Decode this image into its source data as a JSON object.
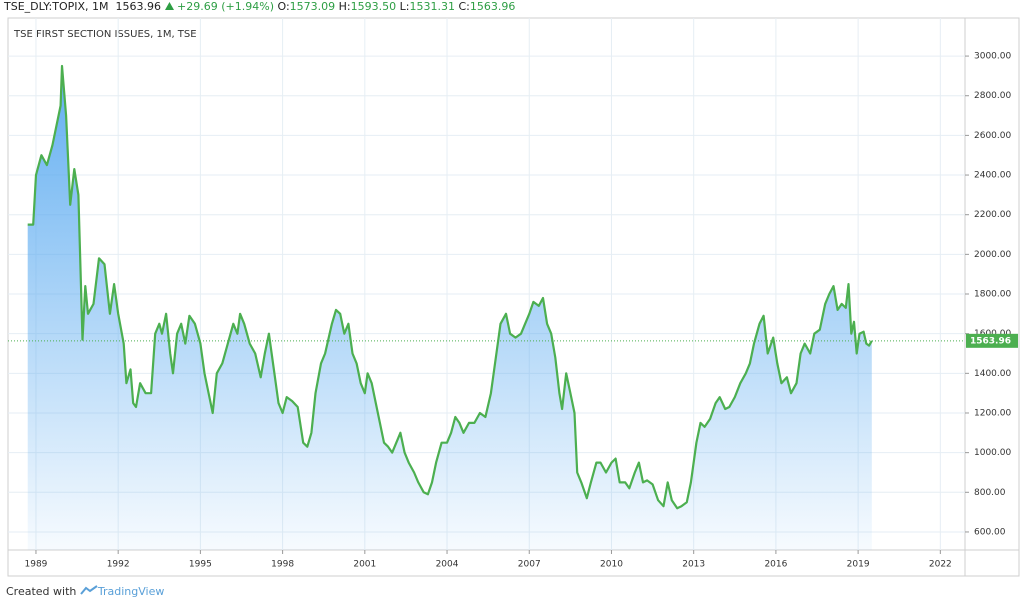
{
  "header": {
    "symbol": "TSE_DLY:TOPIX, 1M",
    "price": "1563.96",
    "change": "+29.69 (+1.94%)",
    "ohlc": [
      {
        "label": "O:",
        "value": "1573.09"
      },
      {
        "label": "H:",
        "value": "1593.50"
      },
      {
        "label": "L:",
        "value": "1531.31"
      },
      {
        "label": "C:",
        "value": "1563.96"
      }
    ]
  },
  "footer": {
    "prefix": "Created with",
    "brand": "TradingView"
  },
  "chart_data": {
    "type": "area",
    "title": "TSE FIRST SECTION ISSUES, 1M, TSE",
    "x": [
      1988.7,
      1988.9,
      1989.0,
      1989.2,
      1989.4,
      1989.6,
      1989.75,
      1989.9,
      1989.95,
      1990.1,
      1990.25,
      1990.4,
      1990.55,
      1990.7,
      1990.8,
      1990.9,
      1991.1,
      1991.3,
      1991.5,
      1991.7,
      1991.85,
      1992.0,
      1992.2,
      1992.3,
      1992.45,
      1992.55,
      1992.65,
      1992.8,
      1993.0,
      1993.2,
      1993.35,
      1993.5,
      1993.6,
      1993.75,
      1993.9,
      1994.0,
      1994.15,
      1994.3,
      1994.45,
      1994.6,
      1994.8,
      1995.0,
      1995.15,
      1995.3,
      1995.45,
      1995.6,
      1995.8,
      1996.0,
      1996.2,
      1996.35,
      1996.45,
      1996.6,
      1996.8,
      1997.0,
      1997.2,
      1997.35,
      1997.5,
      1997.7,
      1997.85,
      1998.0,
      1998.15,
      1998.35,
      1998.55,
      1998.75,
      1998.9,
      1999.05,
      1999.2,
      1999.4,
      1999.55,
      1999.8,
      1999.95,
      2000.1,
      2000.25,
      2000.4,
      2000.55,
      2000.7,
      2000.85,
      2001.0,
      2001.1,
      2001.25,
      2001.4,
      2001.55,
      2001.7,
      2001.85,
      2002.0,
      2002.15,
      2002.3,
      2002.45,
      2002.6,
      2002.8,
      2002.95,
      2003.15,
      2003.3,
      2003.45,
      2003.6,
      2003.8,
      2004.0,
      2004.15,
      2004.3,
      2004.45,
      2004.6,
      2004.8,
      2005.0,
      2005.2,
      2005.4,
      2005.6,
      2005.8,
      2005.95,
      2006.15,
      2006.3,
      2006.5,
      2006.7,
      2006.85,
      2007.0,
      2007.15,
      2007.35,
      2007.5,
      2007.65,
      2007.8,
      2007.95,
      2008.1,
      2008.2,
      2008.35,
      2008.5,
      2008.65,
      2008.75,
      2008.9,
      2009.1,
      2009.25,
      2009.45,
      2009.6,
      2009.8,
      2010.0,
      2010.15,
      2010.3,
      2010.5,
      2010.65,
      2010.85,
      2011.0,
      2011.15,
      2011.3,
      2011.5,
      2011.7,
      2011.9,
      2012.05,
      2012.2,
      2012.4,
      2012.55,
      2012.75,
      2012.9,
      2013.1,
      2013.25,
      2013.4,
      2013.6,
      2013.8,
      2013.95,
      2014.15,
      2014.3,
      2014.5,
      2014.7,
      2014.9,
      2015.05,
      2015.2,
      2015.4,
      2015.55,
      2015.7,
      2015.9,
      2016.05,
      2016.2,
      2016.4,
      2016.55,
      2016.75,
      2016.9,
      2017.05,
      2017.25,
      2017.4,
      2017.6,
      2017.8,
      2017.95,
      2018.1,
      2018.25,
      2018.4,
      2018.55,
      2018.65,
      2018.75,
      2018.85,
      2018.95,
      2019.05,
      2019.2,
      2019.3,
      2019.4,
      2019.5
    ],
    "values": [
      2150,
      2150,
      2400,
      2500,
      2450,
      2550,
      2650,
      2750,
      2950,
      2700,
      2250,
      2430,
      2300,
      1570,
      1840,
      1700,
      1750,
      1980,
      1950,
      1700,
      1850,
      1700,
      1550,
      1350,
      1420,
      1250,
      1230,
      1350,
      1300,
      1300,
      1600,
      1650,
      1600,
      1700,
      1500,
      1400,
      1600,
      1650,
      1550,
      1690,
      1650,
      1550,
      1400,
      1300,
      1200,
      1400,
      1450,
      1550,
      1650,
      1600,
      1700,
      1650,
      1550,
      1500,
      1380,
      1500,
      1600,
      1400,
      1250,
      1200,
      1280,
      1260,
      1230,
      1050,
      1030,
      1100,
      1300,
      1450,
      1500,
      1650,
      1720,
      1700,
      1600,
      1650,
      1500,
      1450,
      1350,
      1300,
      1400,
      1350,
      1250,
      1150,
      1050,
      1030,
      1000,
      1050,
      1100,
      1000,
      950,
      900,
      850,
      800,
      790,
      850,
      950,
      1050,
      1050,
      1100,
      1180,
      1150,
      1100,
      1150,
      1150,
      1200,
      1180,
      1300,
      1500,
      1650,
      1700,
      1600,
      1580,
      1600,
      1650,
      1700,
      1760,
      1740,
      1780,
      1650,
      1600,
      1480,
      1300,
      1220,
      1400,
      1300,
      1200,
      900,
      850,
      770,
      850,
      950,
      950,
      900,
      950,
      970,
      850,
      850,
      820,
      900,
      950,
      850,
      860,
      840,
      760,
      730,
      850,
      760,
      720,
      730,
      750,
      850,
      1050,
      1150,
      1130,
      1170,
      1250,
      1280,
      1220,
      1230,
      1280,
      1350,
      1400,
      1450,
      1550,
      1650,
      1690,
      1500,
      1580,
      1450,
      1350,
      1380,
      1300,
      1350,
      1500,
      1550,
      1500,
      1600,
      1620,
      1750,
      1800,
      1840,
      1720,
      1750,
      1730,
      1850,
      1600,
      1660,
      1500,
      1600,
      1610,
      1550,
      1540,
      1563.96
    ],
    "last_value": 1563.96,
    "color": "#4caf50",
    "fill_color": "#5aaaf0",
    "xlim": [
      1987.98,
      2022.9
    ],
    "xticks": [
      1989,
      1992,
      1995,
      1998,
      2001,
      2004,
      2007,
      2010,
      2013,
      2016,
      2019,
      2022
    ],
    "ylim": [
      509,
      3192
    ],
    "yticks": [
      {
        "value": 600,
        "label": "600.00"
      },
      {
        "value": 800,
        "label": "800.00"
      },
      {
        "value": 1000,
        "label": "1000.00"
      },
      {
        "value": 1200,
        "label": "1200.00"
      },
      {
        "value": 1400,
        "label": "1400.00"
      },
      {
        "value": 1600,
        "label": "1600.00"
      },
      {
        "value": 1800,
        "label": "1800.00"
      },
      {
        "value": 2000,
        "label": "2000.00"
      },
      {
        "value": 2200,
        "label": "2200.00"
      },
      {
        "value": 2400,
        "label": "2400.00"
      },
      {
        "value": 2600,
        "label": "2600.00"
      },
      {
        "value": 2800,
        "label": "2800.00"
      },
      {
        "value": 3000,
        "label": "3000.00"
      }
    ],
    "grid": true
  }
}
